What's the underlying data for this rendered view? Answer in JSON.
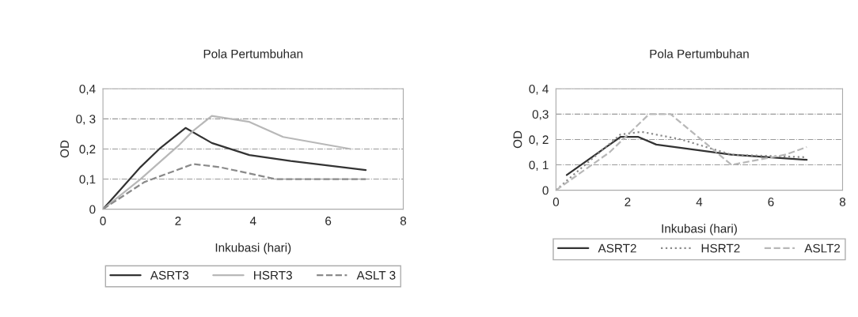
{
  "chart_data": [
    {
      "type": "line",
      "title": "Pola Pertumbuhan",
      "xlabel": "Inkubasi (hari)",
      "ylabel": "OD",
      "xlim": [
        0,
        8
      ],
      "xticks": [
        0,
        2,
        4,
        6,
        8
      ],
      "ylim": [
        0,
        0.4
      ],
      "yticks": [
        {
          "value": 0,
          "label": "0"
        },
        {
          "value": 0.1,
          "label": "0,1"
        },
        {
          "value": 0.2,
          "label": "0,2"
        },
        {
          "value": 0.3,
          "label": "0, 3"
        },
        {
          "value": 0.4,
          "label": "0,4"
        }
      ],
      "grid": "y",
      "legend": "bottom",
      "marker": "none",
      "series": [
        {
          "name": "ASRT3",
          "color": "#333333",
          "line_style": "solid",
          "x": [
            0,
            0.5,
            1,
            1.5,
            2,
            2.2,
            2.9,
            3.9,
            5,
            6,
            7
          ],
          "values": [
            0,
            0.07,
            0.14,
            0.2,
            0.25,
            0.27,
            0.22,
            0.18,
            0.16,
            0.145,
            0.13
          ]
        },
        {
          "name": "HSRT3",
          "color": "#b8b8b8",
          "line_style": "solid",
          "x": [
            0,
            1,
            2,
            2.4,
            2.9,
            3.9,
            4.8,
            6.6
          ],
          "values": [
            0,
            0.1,
            0.21,
            0.26,
            0.31,
            0.29,
            0.24,
            0.2
          ]
        },
        {
          "name": "ASLT 3",
          "color": "#8a8a8a",
          "line_style": "dashed",
          "x": [
            0,
            1.1,
            2.4,
            3.1,
            4.6,
            5.3,
            7
          ],
          "values": [
            0,
            0.09,
            0.15,
            0.14,
            0.1,
            0.1,
            0.1
          ]
        }
      ]
    },
    {
      "type": "line",
      "title": "Pola Pertumbuhan",
      "xlabel": "Inkubasi (hari)",
      "ylabel": "OD",
      "xlim": [
        0,
        8
      ],
      "xticks": [
        0,
        2,
        4,
        6,
        8
      ],
      "ylim": [
        0,
        0.4
      ],
      "yticks": [
        {
          "value": 0,
          "label": "0"
        },
        {
          "value": 0.1,
          "label": "0, 1"
        },
        {
          "value": 0.2,
          "label": "0, 2"
        },
        {
          "value": 0.3,
          "label": "0,3"
        },
        {
          "value": 0.4,
          "label": "0, 4"
        }
      ],
      "grid": "y",
      "legend": "bottom",
      "marker": "none",
      "series": [
        {
          "name": "ASRT2",
          "color": "#333333",
          "line_style": "solid",
          "x": [
            0.3,
            1.8,
            2.3,
            2.8,
            4.9,
            7
          ],
          "values": [
            0.06,
            0.21,
            0.21,
            0.18,
            0.14,
            0.12
          ]
        },
        {
          "name": "HSRT2",
          "color": "#8a8a8a",
          "line_style": "dotted",
          "x": [
            0,
            0.4,
            1.8,
            2.4,
            3.5,
            4.9,
            7
          ],
          "values": [
            0,
            0.05,
            0.22,
            0.23,
            0.2,
            0.14,
            0.13
          ]
        },
        {
          "name": "ASLT2",
          "color": "#b8b8b8",
          "line_style": "dashed",
          "x": [
            0,
            1.5,
            2.6,
            3.2,
            4.9,
            6.4,
            7
          ],
          "values": [
            0,
            0.15,
            0.3,
            0.3,
            0.1,
            0.14,
            0.17
          ]
        }
      ]
    }
  ]
}
